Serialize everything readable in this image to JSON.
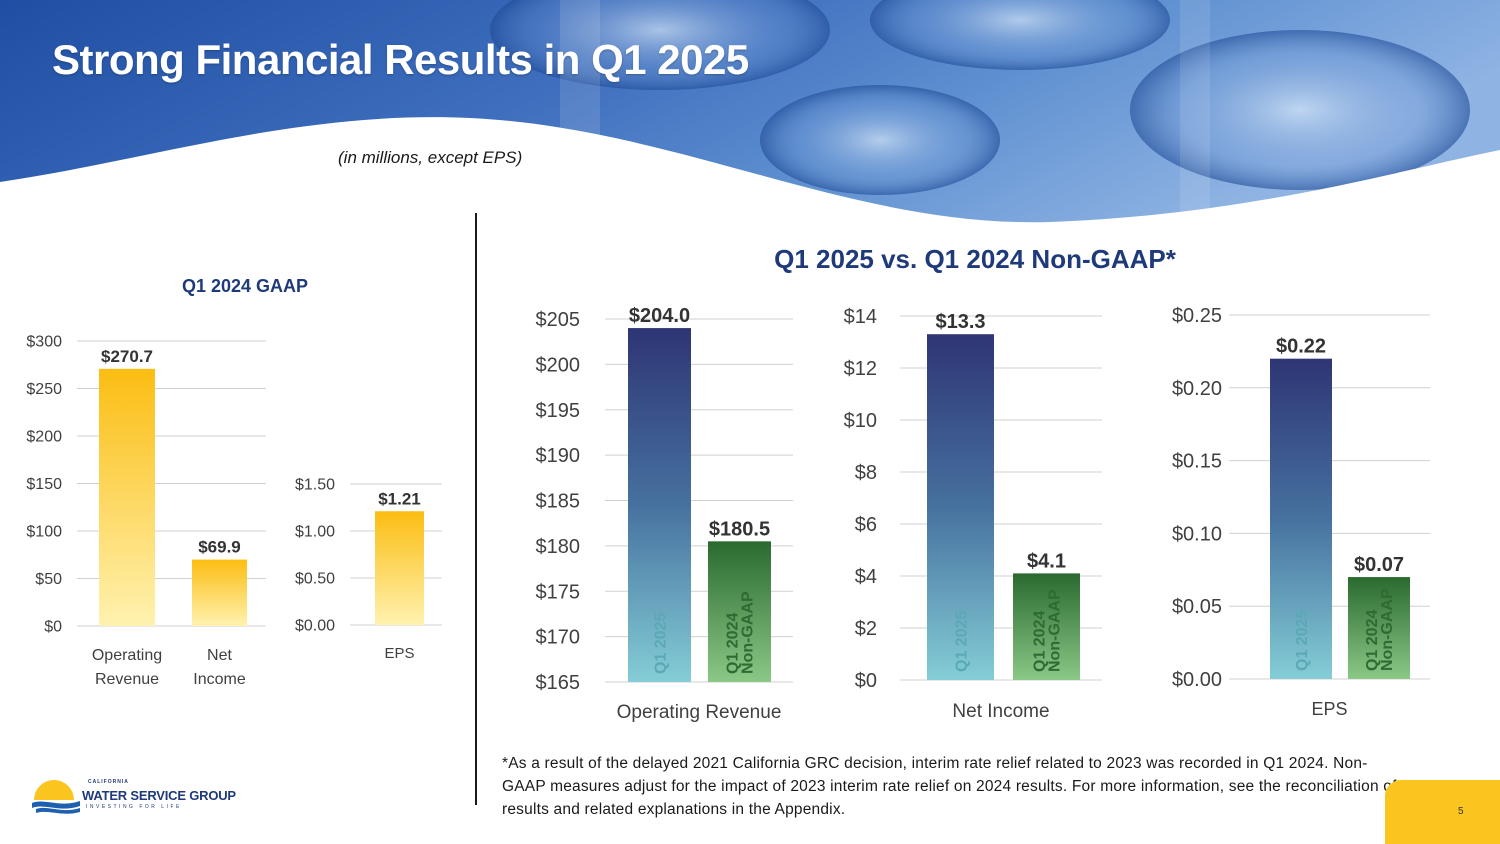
{
  "header": {
    "title": "Strong Financial Results in Q1 2025",
    "subtitle": "(in millions, except EPS)"
  },
  "colors": {
    "gold": "#fbc520",
    "navy": "#2e3574",
    "teal": "#7fc7d3",
    "green_dark": "#2c6e31",
    "green_light": "#83c47f",
    "title_blue": "#1f3a7a"
  },
  "chart_data": [
    {
      "id": "gaap-main",
      "type": "bar",
      "title": "Q1 2024 GAAP",
      "categories": [
        "Operating\nRevenue",
        "Net\nIncome"
      ],
      "values": [
        270.7,
        69.9
      ],
      "value_labels": [
        "$270.7",
        "$69.9"
      ],
      "ylim": [
        0,
        300
      ],
      "yticks": [
        0,
        50,
        100,
        150,
        200,
        250,
        300
      ],
      "ytick_labels": [
        "$0",
        "$50",
        "$100",
        "$150",
        "$200",
        "$250",
        "$300"
      ]
    },
    {
      "id": "gaap-eps",
      "type": "bar",
      "categories": [
        "EPS"
      ],
      "values": [
        1.21
      ],
      "value_labels": [
        "$1.21"
      ],
      "ylim": [
        0,
        1.5
      ],
      "yticks": [
        0,
        0.5,
        1.0,
        1.5
      ],
      "ytick_labels": [
        "$0.00",
        "$0.50",
        "$1.00",
        "$1.50"
      ]
    },
    {
      "id": "ng-revenue",
      "type": "bar",
      "title": "Q1 2025 vs. Q1 2024 Non-GAAP*",
      "xlabel": "Operating Revenue",
      "series": [
        {
          "name": "Q1 2025",
          "value": 204.0,
          "label": "$204.0"
        },
        {
          "name": "Q1 2024\nNon-GAAP",
          "value": 180.5,
          "label": "$180.5"
        }
      ],
      "ylim": [
        165,
        205
      ],
      "yticks": [
        165,
        170,
        175,
        180,
        185,
        190,
        195,
        200,
        205
      ],
      "ytick_labels": [
        "$165",
        "$170",
        "$175",
        "$180",
        "$185",
        "$190",
        "$195",
        "$200",
        "$205"
      ]
    },
    {
      "id": "ng-income",
      "type": "bar",
      "xlabel": "Net Income",
      "series": [
        {
          "name": "Q1 2025",
          "value": 13.3,
          "label": "$13.3"
        },
        {
          "name": "Q1 2024\nNon-GAAP",
          "value": 4.1,
          "label": "$4.1"
        }
      ],
      "ylim": [
        0,
        14
      ],
      "yticks": [
        0,
        2,
        4,
        6,
        8,
        10,
        12,
        14
      ],
      "ytick_labels": [
        "$0",
        "$2",
        "$4",
        "$6",
        "$8",
        "$10",
        "$12",
        "$14"
      ]
    },
    {
      "id": "ng-eps",
      "type": "bar",
      "xlabel": "EPS",
      "series": [
        {
          "name": "Q1 2025",
          "value": 0.22,
          "label": "$0.22"
        },
        {
          "name": "Q1 2024\nNon-GAAP",
          "value": 0.07,
          "label": "$0.07"
        }
      ],
      "ylim": [
        0,
        0.25
      ],
      "yticks": [
        0,
        0.05,
        0.1,
        0.15,
        0.2,
        0.25
      ],
      "ytick_labels": [
        "$0.00",
        "$0.05",
        "$0.10",
        "$0.15",
        "$0.20",
        "$0.25"
      ]
    }
  ],
  "footnote": "*As a result of the delayed 2021 California GRC decision, interim rate relief related to 2023 was recorded in Q1 2024. Non-GAAP measures adjust for the impact of 2023 interim rate relief on 2024 results.  For more information, see the reconciliation of results and related explanations in the Appendix.",
  "logo": {
    "top": "CALIFORNIA",
    "main": "WATER SERVICE GROUP",
    "tagline": "INVESTING FOR LIFE"
  },
  "page_number": "5"
}
